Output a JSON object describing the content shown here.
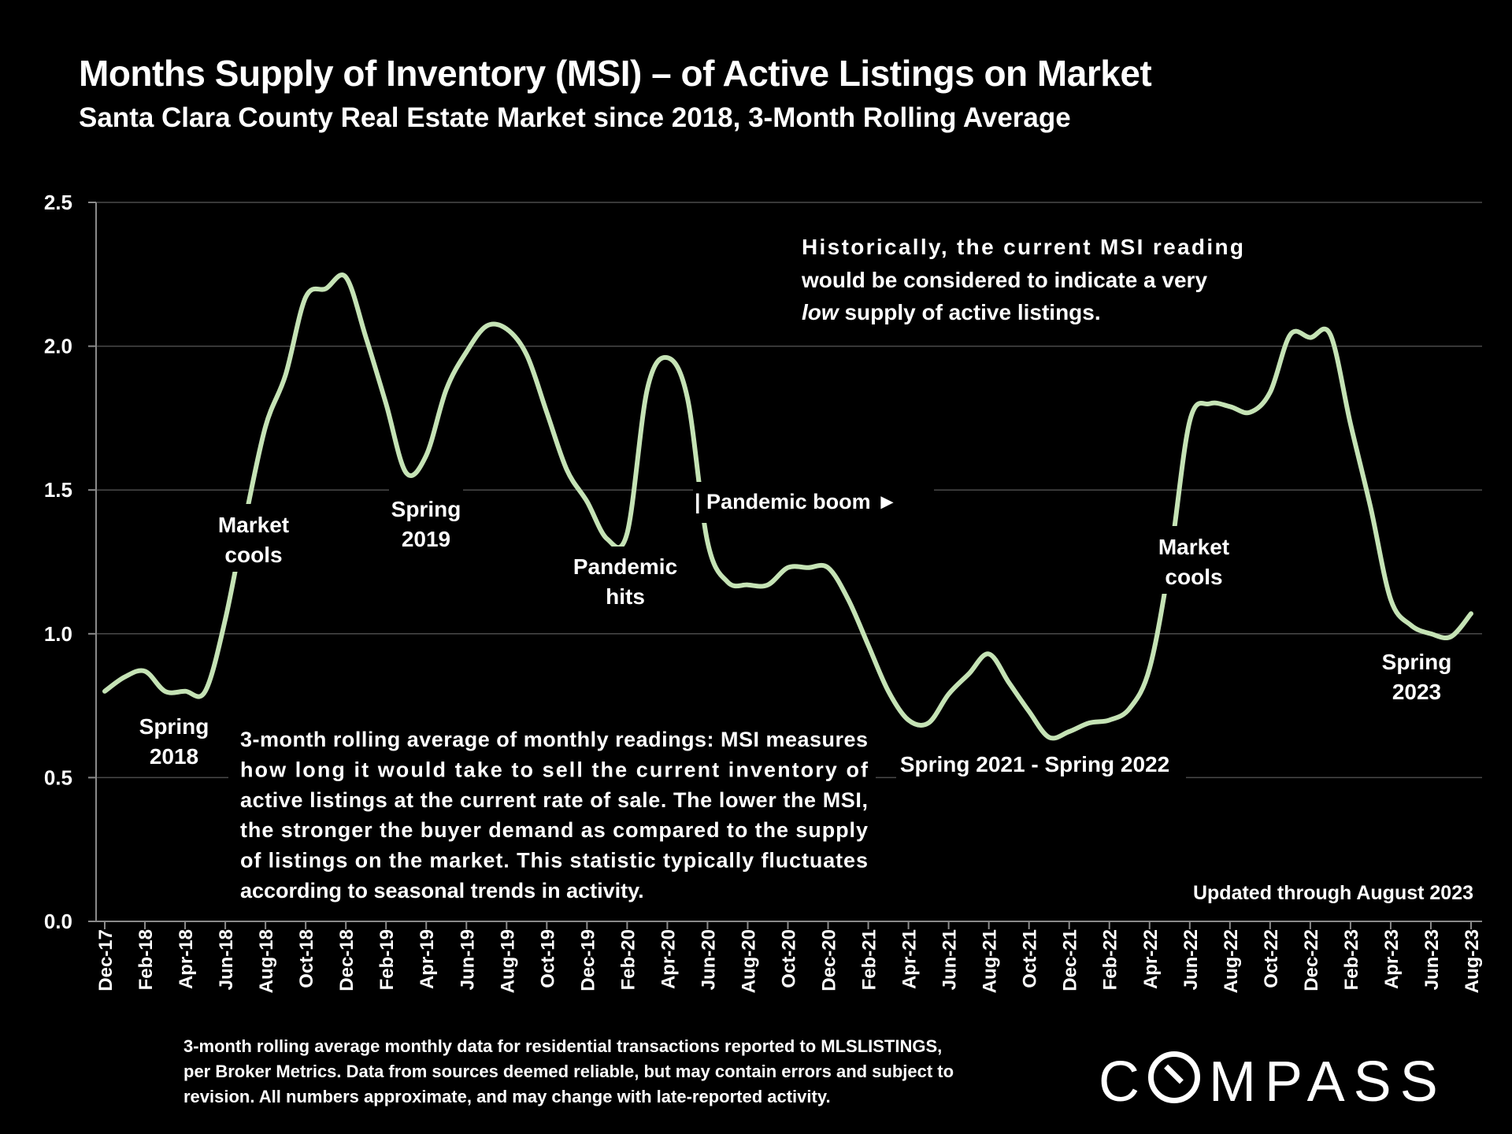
{
  "header": {
    "title": "Months Supply of Inventory (MSI) – of Active Listings on Market",
    "subtitle": "Santa Clara County Real Estate Market since 2018, 3-Month Rolling Average"
  },
  "chart_data": {
    "type": "line",
    "title": "Months Supply of Inventory (MSI) – of Active Listings on Market",
    "subtitle": "Santa Clara County Real Estate Market since 2018, 3-Month Rolling Average",
    "xlabel": "",
    "ylabel": "",
    "ylim": [
      0,
      2.5
    ],
    "yticks": [
      "0.0",
      "0.5",
      "1.0",
      "1.5",
      "2.0",
      "2.5"
    ],
    "grid": true,
    "legend": "none",
    "line_color": "#c5e3b5",
    "x_tick_labels": [
      "Dec-17",
      "Feb-18",
      "Apr-18",
      "Jun-18",
      "Aug-18",
      "Oct-18",
      "Dec-18",
      "Feb-19",
      "Apr-19",
      "Jun-19",
      "Aug-19",
      "Oct-19",
      "Dec-19",
      "Feb-20",
      "Apr-20",
      "Jun-20",
      "Aug-20",
      "Oct-20",
      "Dec-20",
      "Feb-21",
      "Apr-21",
      "Jun-21",
      "Aug-21",
      "Oct-21",
      "Dec-21",
      "Feb-22",
      "Apr-22",
      "Jun-22",
      "Aug-22",
      "Oct-22",
      "Dec-22",
      "Feb-23",
      "Apr-23",
      "Jun-23",
      "Aug-23"
    ],
    "series": [
      {
        "x": [
          "Dec-17",
          "Jan-18",
          "Feb-18",
          "Mar-18",
          "Apr-18",
          "May-18",
          "Jun-18",
          "Jul-18",
          "Aug-18",
          "Sep-18",
          "Oct-18",
          "Nov-18",
          "Dec-18",
          "Jan-19",
          "Feb-19",
          "Mar-19",
          "Apr-19",
          "May-19",
          "Jun-19",
          "Jul-19",
          "Aug-19",
          "Sep-19",
          "Oct-19",
          "Nov-19",
          "Dec-19",
          "Jan-20",
          "Feb-20",
          "Mar-20",
          "Apr-20",
          "May-20",
          "Jun-20",
          "Jul-20",
          "Aug-20",
          "Sep-20",
          "Oct-20",
          "Nov-20",
          "Dec-20",
          "Jan-21",
          "Feb-21",
          "Mar-21",
          "Apr-21",
          "May-21",
          "Jun-21",
          "Jul-21",
          "Aug-21",
          "Sep-21",
          "Oct-21",
          "Nov-21",
          "Dec-21",
          "Jan-22",
          "Feb-22",
          "Mar-22",
          "Apr-22",
          "May-22",
          "Jun-22",
          "Jul-22",
          "Aug-22",
          "Sep-22",
          "Oct-22",
          "Nov-22",
          "Dec-22",
          "Jan-23",
          "Feb-23",
          "Mar-23",
          "Apr-23",
          "May-23",
          "Jun-23",
          "Jul-23",
          "Aug-23"
        ],
        "values": [
          0.8,
          0.85,
          0.87,
          0.8,
          0.8,
          0.8,
          1.05,
          1.4,
          1.72,
          1.9,
          2.17,
          2.2,
          2.24,
          2.03,
          1.8,
          1.56,
          1.62,
          1.85,
          1.98,
          2.07,
          2.06,
          1.97,
          1.77,
          1.57,
          1.46,
          1.33,
          1.35,
          1.85,
          1.96,
          1.82,
          1.32,
          1.18,
          1.17,
          1.17,
          1.23,
          1.23,
          1.23,
          1.12,
          0.96,
          0.8,
          0.7,
          0.69,
          0.79,
          0.86,
          0.93,
          0.83,
          0.73,
          0.64,
          0.66,
          0.69,
          0.7,
          0.74,
          0.88,
          1.25,
          1.74,
          1.8,
          1.79,
          1.77,
          1.84,
          2.04,
          2.03,
          2.04,
          1.73,
          1.44,
          1.12,
          1.03,
          1.0,
          0.99,
          1.07
        ]
      }
    ],
    "annotations": {
      "spring2018": [
        "Spring",
        "2018"
      ],
      "market_cools_2018": [
        "Market",
        "cools"
      ],
      "spring2019": [
        "Spring",
        "2019"
      ],
      "pandemic_hits": [
        "Pandemic",
        "hits"
      ],
      "pandemic_boom": "| Pandemic boom ►",
      "spring2021_2022": "Spring 2021 - Spring 2022",
      "market_cools_2022": [
        "Market",
        "cools"
      ],
      "spring2023": [
        "Spring",
        "2023"
      ],
      "historically_note": [
        "Historically, the current MSI reading",
        "would be considered to indicate a very",
        "low",
        " supply of active listings."
      ],
      "explanation": [
        "3-month rolling average of monthly readings: MSI measures",
        "how long it would take to sell the current inventory of",
        "active listings at the current rate of sale. The lower the MSI,",
        "the stronger the buyer demand as compared to the supply",
        "of listings on the market. This statistic typically fluctuates",
        "according to seasonal trends in activity."
      ],
      "updated": "Updated through August 2023"
    }
  },
  "footer": {
    "lines": [
      "3-month rolling average monthly data for residential transactions reported to MLSLISTINGS,",
      "per Broker Metrics. Data from sources deemed reliable, but may contain errors and subject to",
      "revision. All numbers approximate, and may change with late-reported activity."
    ],
    "logo_text": [
      "C",
      "MPASS"
    ]
  }
}
